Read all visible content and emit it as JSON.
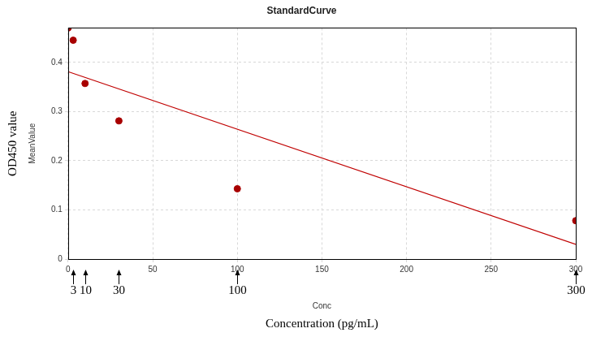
{
  "chart_data": {
    "type": "scatter",
    "title": "StandardCurve",
    "xlabel": "Conc",
    "ylabel": "MeanValue",
    "series": [
      {
        "type": "scatter",
        "color": "#a80000",
        "marker": "circle",
        "x": [
          0,
          3,
          10,
          30,
          100,
          300
        ],
        "values": [
          0.47,
          0.445,
          0.357,
          0.281,
          0.143,
          0.078
        ]
      },
      {
        "type": "line",
        "color": "#c00000",
        "line_style": "solid",
        "x": [
          0,
          300
        ],
        "values": [
          0.381,
          0.03
        ]
      }
    ],
    "xlim": [
      0,
      300
    ],
    "xticks": [
      0,
      50,
      100,
      150,
      200,
      250,
      300
    ],
    "ylim": [
      0,
      0.47
    ],
    "yticks": [
      0,
      0.1,
      0.2,
      0.3,
      0.4
    ],
    "grid": true,
    "annotations": [
      {
        "x": 3,
        "text": "3"
      },
      {
        "x": 10,
        "text": "10"
      },
      {
        "x": 30,
        "text": "30"
      },
      {
        "x": 100,
        "text": "100"
      },
      {
        "x": 300,
        "text": "300"
      },
      {
        "position": "left",
        "text": "OD450 value"
      },
      {
        "position": "bottom",
        "text": "Concentration (pg/mL)"
      }
    ]
  }
}
